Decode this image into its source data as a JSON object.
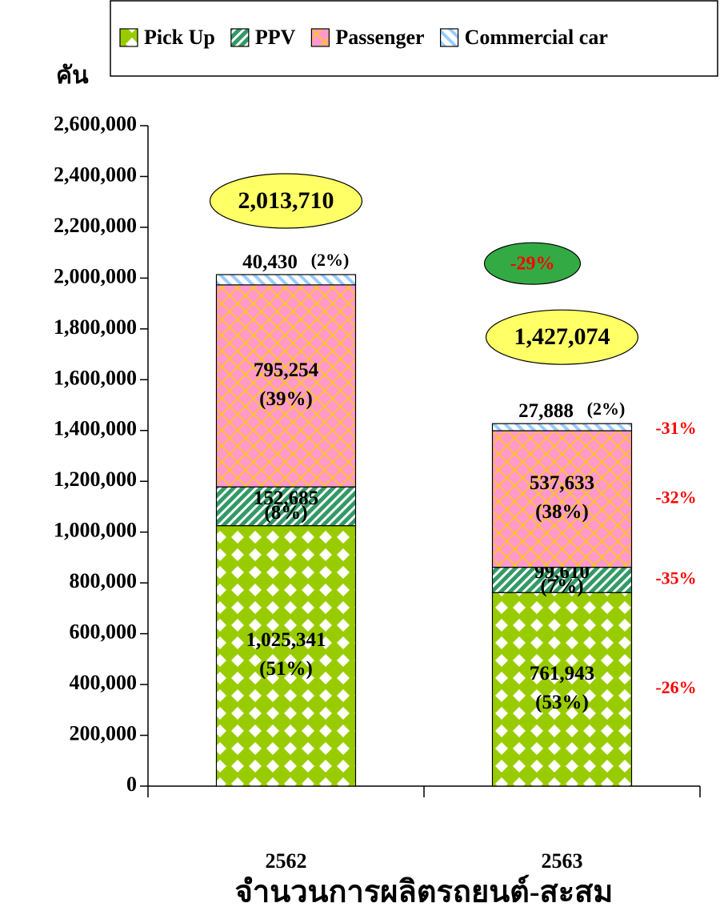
{
  "chart_data": {
    "type": "stacked-bar",
    "title": "จำนวนการผลิตรถยนต์-สะสม",
    "y_label": "คัน",
    "categories": [
      "2562",
      "2563"
    ],
    "series": [
      {
        "name": "Pick Up",
        "color": "#99cc00",
        "values": [
          1025341,
          761943
        ],
        "value_labels": [
          "1,025,341",
          "761,943"
        ],
        "share_labels": [
          "(51%)",
          "(53%)"
        ],
        "change_label": "-26%"
      },
      {
        "name": "PPV",
        "color": "#339966",
        "values": [
          152685,
          99610
        ],
        "value_labels": [
          "152,685",
          "99,610"
        ],
        "share_labels": [
          "(8%)",
          "(7%)"
        ],
        "change_label": "-35%"
      },
      {
        "name": "Passenger",
        "color": "#ff99cc",
        "values": [
          795254,
          537633
        ],
        "value_labels": [
          "795,254",
          "537,633"
        ],
        "share_labels": [
          "(39%)",
          "(38%)"
        ],
        "change_label": "-32%"
      },
      {
        "name": "Commercial car",
        "color": "#99ccff",
        "values": [
          40430,
          27888
        ],
        "value_labels": [
          "40,430",
          "27,888"
        ],
        "share_labels": [
          "(2%)",
          "(2%)"
        ],
        "change_label": "-31%"
      }
    ],
    "totals": [
      2013710,
      1427074
    ],
    "total_labels": [
      "2,013,710",
      "1,427,074"
    ],
    "total_change_label": "-29%",
    "ylim": [
      0,
      2600000
    ],
    "yticks": [
      0,
      {
        "value": 200000,
        "label": "200,000"
      },
      {
        "value": 400000,
        "label": "400,000"
      },
      {
        "value": 600000,
        "label": "600,000"
      },
      {
        "value": 800000,
        "label": "800,000"
      },
      {
        "value": 1000000,
        "label": "1,000,000"
      },
      {
        "value": 1200000,
        "label": "1,200,000"
      },
      {
        "value": 1400000,
        "label": "1,400,000"
      },
      {
        "value": 1600000,
        "label": "1,600,000"
      },
      {
        "value": 1800000,
        "label": "1,800,000"
      },
      {
        "value": 2000000,
        "label": "2,000,000"
      },
      {
        "value": 2200000,
        "label": "2,200,000"
      },
      {
        "value": 2400000,
        "label": "2,400,000"
      },
      {
        "value": 2600000,
        "label": "2,600,000"
      }
    ],
    "legend": "top"
  }
}
